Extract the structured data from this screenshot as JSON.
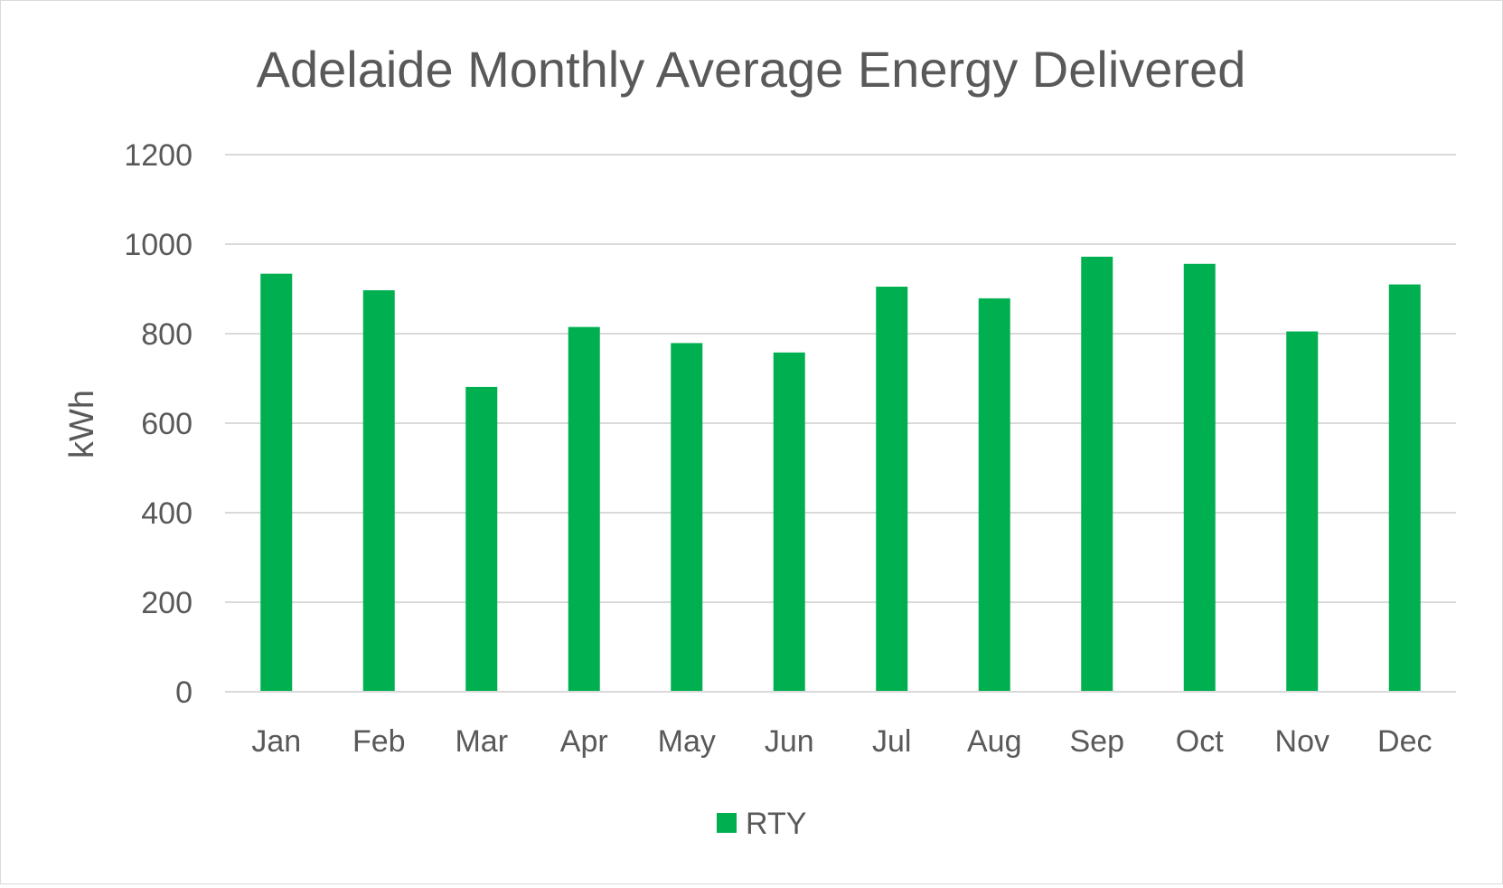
{
  "chart_data": {
    "type": "bar",
    "title": "Adelaide Monthly Average Energy Delivered",
    "xlabel": "",
    "ylabel": "kWh",
    "categories": [
      "Jan",
      "Feb",
      "Mar",
      "Apr",
      "May",
      "Jun",
      "Jul",
      "Aug",
      "Sep",
      "Oct",
      "Nov",
      "Dec"
    ],
    "series": [
      {
        "name": "RTY",
        "color": "#00b050",
        "values": [
          934,
          897,
          681,
          815,
          779,
          758,
          905,
          879,
          972,
          956,
          805,
          910
        ]
      }
    ],
    "ylim": [
      0,
      1200
    ],
    "yticks": [
      "0",
      "200",
      "400",
      "600",
      "800",
      "1000",
      "1200"
    ],
    "grid": true,
    "legend": "bottom"
  }
}
